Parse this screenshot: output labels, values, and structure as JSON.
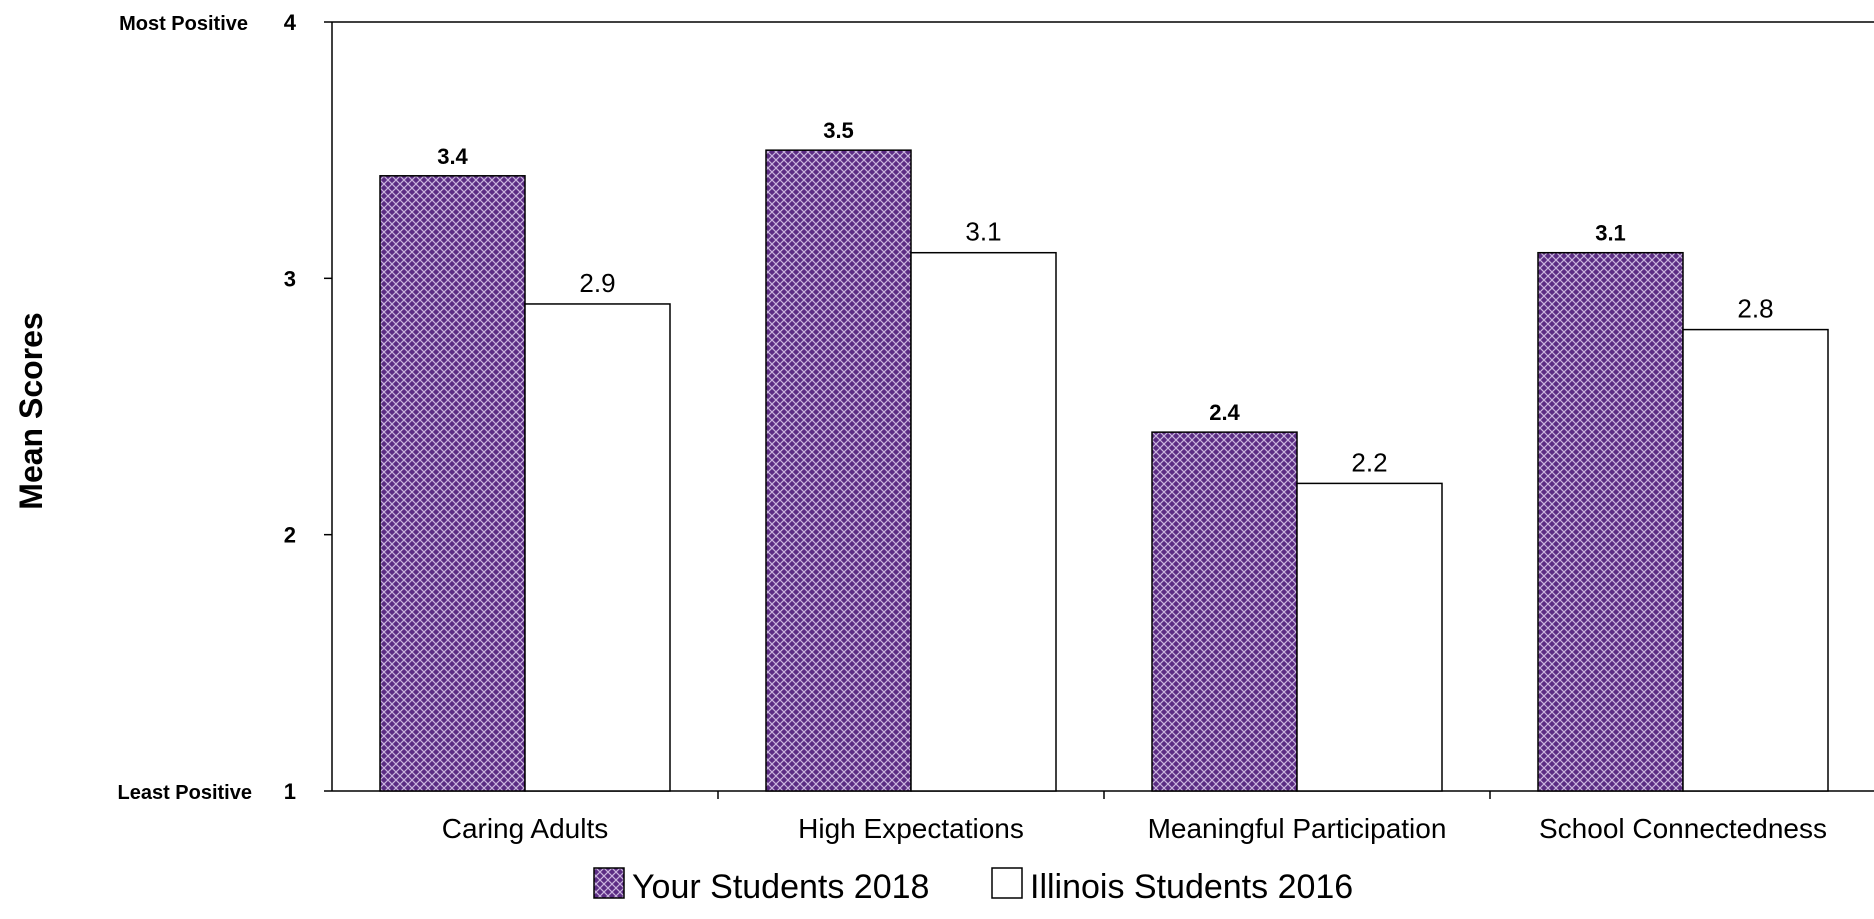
{
  "chart_data": {
    "type": "bar",
    "title": "",
    "ylabel": "Mean Scores",
    "xlabel": "",
    "ylim": [
      1,
      4
    ],
    "yticks": [
      1,
      2,
      3,
      4
    ],
    "y_extreme_labels": {
      "top": "Most Positive",
      "bottom": "Least Positive"
    },
    "categories": [
      "Caring Adults",
      "High Expectations",
      "Meaningful Participation",
      "School Connectedness"
    ],
    "series": [
      {
        "name": "Your Students 2018",
        "values": [
          3.4,
          3.5,
          2.4,
          3.1
        ],
        "labels": [
          "3.4",
          "3.5",
          "2.4",
          "3.1"
        ],
        "fill": "crosshatch",
        "color": "#5B2C83"
      },
      {
        "name": "Illinois Students 2016",
        "values": [
          2.9,
          3.1,
          2.2,
          2.8
        ],
        "labels": [
          "2.9",
          "3.1",
          "2.2",
          "2.8"
        ],
        "fill": "solid",
        "color": "#FFFFFF"
      }
    ],
    "legend_position": "bottom-center",
    "grid": false
  }
}
